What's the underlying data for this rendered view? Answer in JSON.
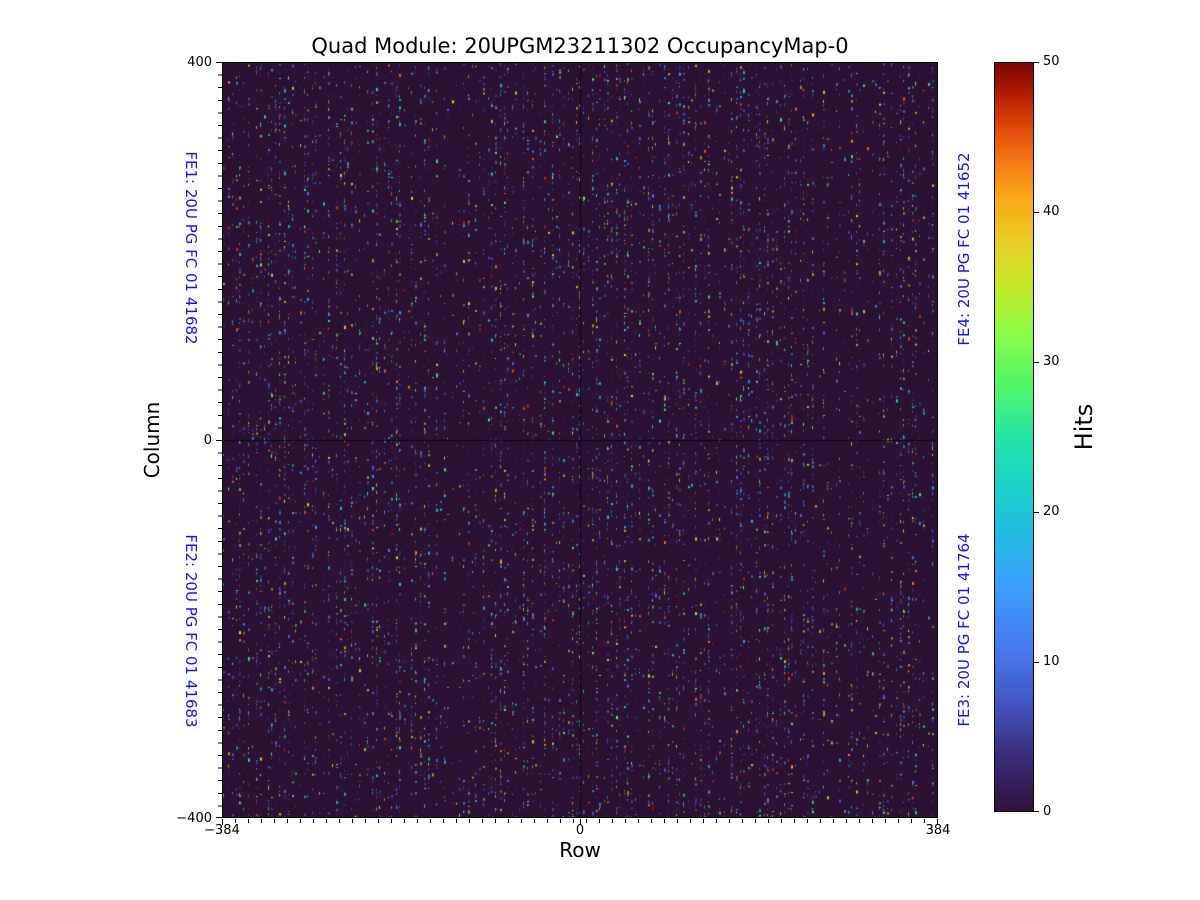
{
  "chart_data": {
    "type": "heatmap",
    "title": "Quad Module: 20UPGM23211302 OccupancyMap-0",
    "xlabel": "Row",
    "ylabel": "Column",
    "xlim": [
      -384,
      384
    ],
    "ylim": [
      -400,
      400
    ],
    "x_ticks": [
      -384,
      0,
      384
    ],
    "y_ticks": [
      400,
      0,
      -400
    ],
    "x_tick_labels": [
      "−384",
      "0",
      "384"
    ],
    "y_tick_labels": [
      "400",
      "0",
      "−400"
    ],
    "grid": false,
    "legend": "none",
    "colormap": "turbo",
    "colorbar": {
      "label": "Hits",
      "vmin": 0,
      "vmax": 50,
      "ticks": [
        0,
        10,
        20,
        30,
        40,
        50
      ],
      "tick_labels": [
        "0",
        "10",
        "20",
        "30",
        "40",
        "50"
      ],
      "stops": [
        {
          "at": 0.0,
          "color": "#30123b"
        },
        {
          "at": 0.08,
          "color": "#3b2f80"
        },
        {
          "at": 0.15,
          "color": "#4458c8"
        },
        {
          "at": 0.22,
          "color": "#467bee"
        },
        {
          "at": 0.3,
          "color": "#3a9efd"
        },
        {
          "at": 0.37,
          "color": "#23bce3"
        },
        {
          "at": 0.44,
          "color": "#19d3c5"
        },
        {
          "at": 0.5,
          "color": "#24e5a6"
        },
        {
          "at": 0.57,
          "color": "#51f667"
        },
        {
          "at": 0.64,
          "color": "#8cfb46"
        },
        {
          "at": 0.7,
          "color": "#c5ea2a"
        },
        {
          "at": 0.76,
          "color": "#e7cd25"
        },
        {
          "at": 0.82,
          "color": "#fba819"
        },
        {
          "at": 0.87,
          "color": "#f27716"
        },
        {
          "at": 0.92,
          "color": "#dc4207"
        },
        {
          "at": 0.96,
          "color": "#b01b02"
        },
        {
          "at": 1.0,
          "color": "#7a0403"
        }
      ]
    },
    "fe_chips": {
      "color": "#1414f0",
      "top_left": "FE1: 20U PG FC 01 41682",
      "bottom_left": "FE2: 20U PG FC 01 41683",
      "top_right": "FE4: 20U PG FC 01 41652",
      "bottom_right": "FE3: 20U PG FC 01 41764"
    },
    "content_summary": "Occupancy map of a quad pixel module (768x800 pixel matrix split into four front-end chip quadrants separated by black lines at Row=0 and Column=0). Sparse random hits, mostly 1-15 hits (blue/indigo) with occasional values up to 50 (green/yellow/orange/red), on a 0-hit dark-purple background.",
    "render": {
      "seed": 1302,
      "count": 10500,
      "column_pitch": 4,
      "background": "#2b1133",
      "separator_color": "#0c0a16",
      "palette": [
        {
          "color": "#3a2a74",
          "w": 9
        },
        {
          "color": "#443ca5",
          "w": 12
        },
        {
          "color": "#4a58d0",
          "w": 12
        },
        {
          "color": "#4678ee",
          "w": 10
        },
        {
          "color": "#3e97f7",
          "w": 8
        },
        {
          "color": "#27b8e8",
          "w": 7
        },
        {
          "color": "#1dd3c2",
          "w": 6
        },
        {
          "color": "#2ce5a0",
          "w": 5
        },
        {
          "color": "#55f365",
          "w": 4
        },
        {
          "color": "#8cfb46",
          "w": 3
        },
        {
          "color": "#c5ea2a",
          "w": 3
        },
        {
          "color": "#e8cd26",
          "w": 4
        },
        {
          "color": "#fbae1d",
          "w": 4
        },
        {
          "color": "#f8821a",
          "w": 3
        },
        {
          "color": "#e55a0e",
          "w": 3
        },
        {
          "color": "#c33605",
          "w": 3
        },
        {
          "color": "#911102",
          "w": 2
        },
        {
          "color": "#5c3d9e",
          "w": 2
        }
      ],
      "sparse_bands": [
        {
          "y0": 0.643,
          "y1": 0.659,
          "x0": 0.5,
          "x1": 1.0,
          "keep": 0.3
        }
      ]
    }
  }
}
